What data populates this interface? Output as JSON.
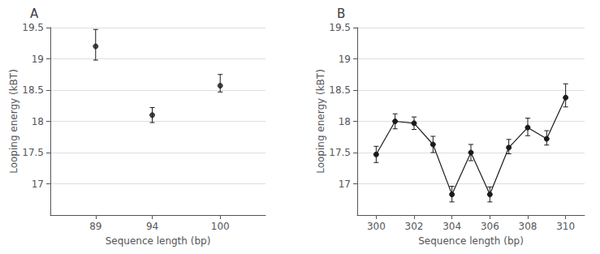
{
  "chart_data": [
    {
      "type": "scatter",
      "title": "A",
      "x": [
        89,
        94,
        100
      ],
      "values": [
        19.2,
        18.1,
        18.57
      ],
      "error_low": [
        0.22,
        0.12,
        0.1
      ],
      "error_high": [
        0.27,
        0.12,
        0.18
      ],
      "xlim": [
        85,
        104
      ],
      "xticks": [
        89,
        94,
        100
      ],
      "ylim": [
        16.5,
        19.5
      ],
      "yticks": [
        17.0,
        17.5,
        18.0,
        18.5,
        19.0,
        19.5
      ],
      "xlabel": "Sequence length (bp)",
      "ylabel": "Looping energy (kBT)",
      "color": "#1a1a1a",
      "marker": "circle",
      "grid": true
    },
    {
      "type": "line",
      "title": "B",
      "x": [
        300,
        301,
        302,
        303,
        304,
        305,
        306,
        307,
        308,
        309,
        310
      ],
      "values": [
        17.47,
        18.0,
        17.97,
        17.63,
        16.83,
        17.5,
        16.83,
        17.58,
        17.9,
        17.72,
        18.38
      ],
      "error_low": [
        0.13,
        0.12,
        0.1,
        0.13,
        0.12,
        0.13,
        0.12,
        0.1,
        0.13,
        0.1,
        0.15
      ],
      "error_high": [
        0.13,
        0.12,
        0.1,
        0.13,
        0.13,
        0.13,
        0.12,
        0.13,
        0.15,
        0.13,
        0.22
      ],
      "xlim": [
        299,
        311
      ],
      "xticks": [
        300,
        302,
        304,
        306,
        308,
        310
      ],
      "ylim": [
        16.5,
        19.5
      ],
      "yticks": [
        17.0,
        17.5,
        18.0,
        18.5,
        19.0,
        19.5
      ],
      "xlabel": "Sequence length (bp)",
      "ylabel": "Looping energy (kBT)",
      "color": "#1a1a1a",
      "marker": "circle",
      "grid": true
    }
  ]
}
